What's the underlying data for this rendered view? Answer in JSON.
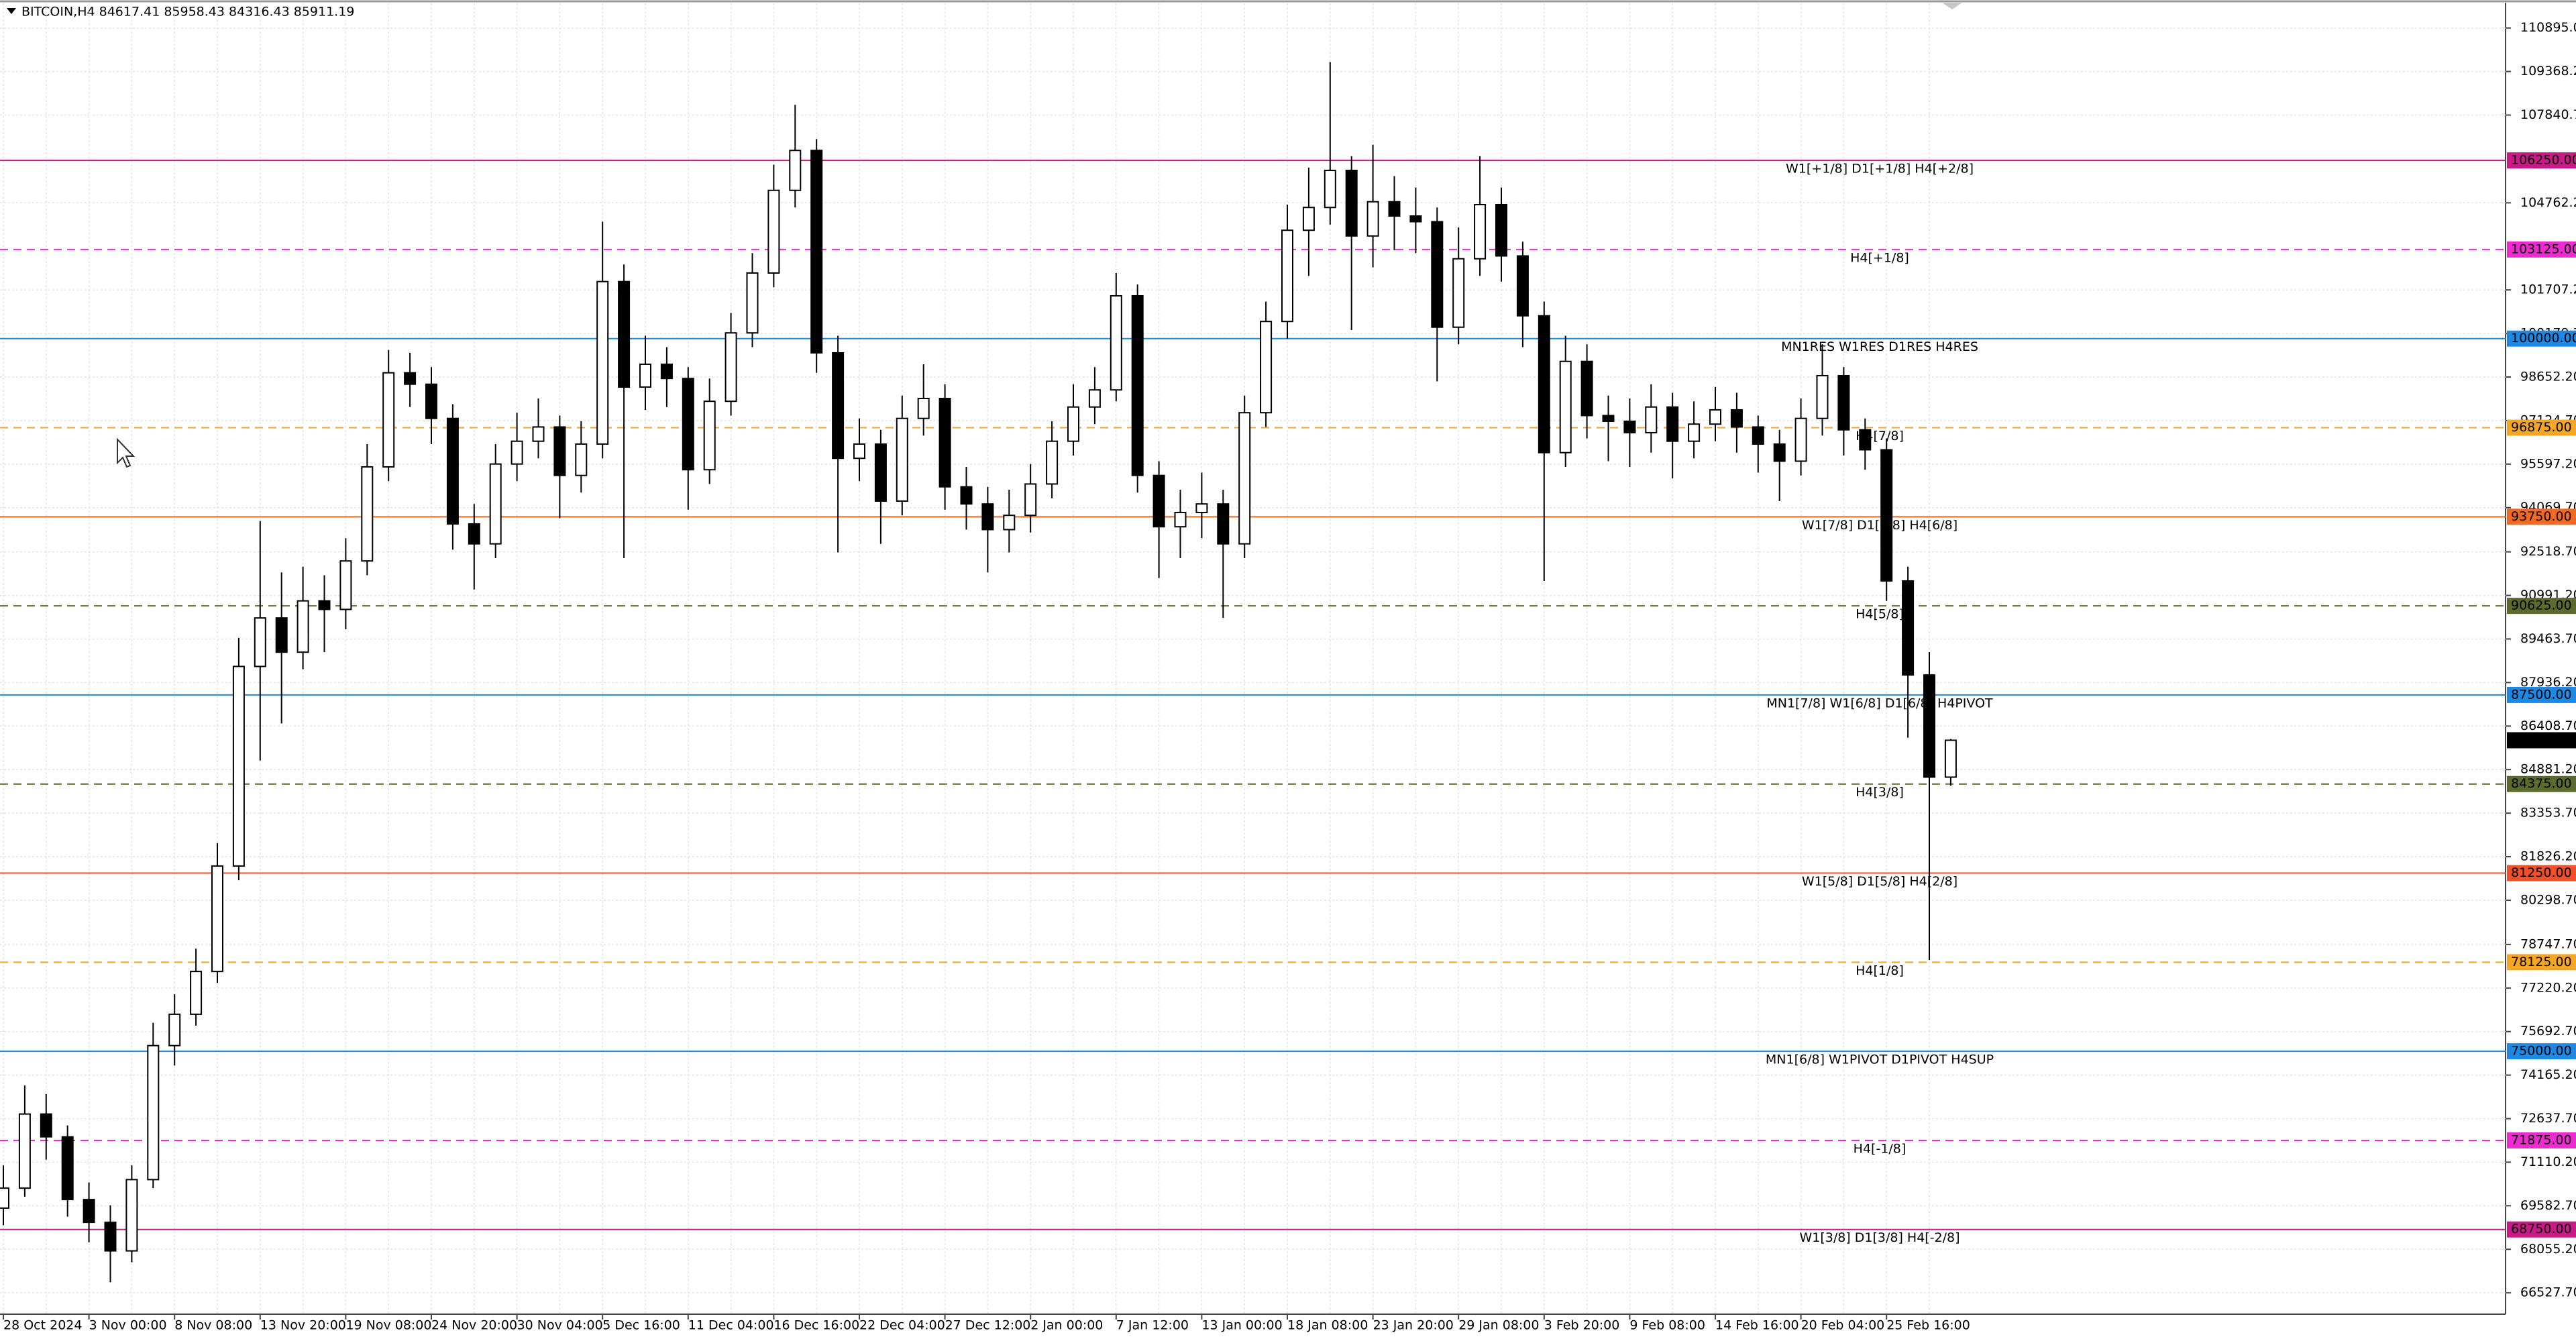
{
  "chart_data": {
    "type": "candlestick",
    "title": "BITCOIN,H4  84617.41 85958.43 84316.43 85911.19",
    "categories": [
      "28 Oct 2024",
      null,
      null,
      null,
      "3 Nov 00:00",
      null,
      null,
      null,
      "8 Nov 08:00",
      null,
      null,
      null,
      "13 Nov 20:00",
      null,
      null,
      null,
      "19 Nov 08:00",
      null,
      null,
      null,
      "24 Nov 20:00",
      null,
      null,
      null,
      "30 Nov 04:00",
      null,
      null,
      null,
      "5 Dec 16:00",
      null,
      null,
      null,
      "11 Dec 04:00",
      null,
      null,
      null,
      "16 Dec 16:00",
      null,
      null,
      null,
      "22 Dec 04:00",
      null,
      null,
      null,
      "27 Dec 12:00",
      null,
      null,
      null,
      "2 Jan 00:00",
      null,
      null,
      null,
      "7 Jan 12:00",
      null,
      null,
      null,
      "13 Jan 00:00",
      null,
      null,
      null,
      "18 Jan 08:00",
      null,
      null,
      null,
      "23 Jan 20:00",
      null,
      null,
      null,
      "29 Jan 08:00",
      null,
      null,
      null,
      "3 Feb 20:00",
      null,
      null,
      null,
      "9 Feb 08:00",
      null,
      null,
      null,
      "14 Feb 16:00",
      null,
      null,
      null,
      "20 Feb 04:00",
      null,
      null,
      null,
      "25 Feb 16:00",
      null,
      null,
      null
    ],
    "open": [
      69500,
      70200,
      72800,
      72000,
      69800,
      69000,
      68000,
      70500,
      75200,
      76300,
      77800,
      81500,
      88500,
      90200,
      89000,
      90800,
      90500,
      92200,
      95500,
      98800,
      98400,
      97200,
      93500,
      92800,
      95600,
      96400,
      96900,
      95200,
      96300,
      102000,
      98300,
      99100,
      98600,
      95400,
      97800,
      100200,
      102300,
      105200,
      106600,
      99500,
      95800,
      96300,
      94300,
      97200,
      97900,
      94800,
      94200,
      93300,
      93800,
      94900,
      96400,
      97600,
      98200,
      101500,
      95200,
      93400,
      93900,
      94200,
      92800,
      97400,
      100600,
      103800,
      104600,
      105900,
      103600,
      104800,
      104300,
      104100,
      100400,
      102800,
      104700,
      102900,
      100800,
      96000,
      99200,
      97300,
      97100,
      96700,
      97600,
      96400,
      97000,
      97500,
      96900,
      96300,
      95700,
      97200,
      98700,
      96800,
      96100,
      91500,
      88200,
      84617.41
    ],
    "high": [
      71000,
      73800,
      73500,
      72400,
      70400,
      69600,
      71000,
      76000,
      77000,
      78600,
      82300,
      89500,
      93600,
      91800,
      92000,
      91700,
      93000,
      96300,
      99600,
      99500,
      99000,
      97700,
      94200,
      96300,
      97400,
      97900,
      97300,
      97100,
      104100,
      102600,
      100100,
      99700,
      99000,
      98600,
      100900,
      103000,
      106100,
      108200,
      107000,
      100100,
      97200,
      96800,
      98000,
      99100,
      98400,
      95500,
      94800,
      94700,
      95600,
      97100,
      98400,
      99000,
      102300,
      101900,
      95700,
      94700,
      95300,
      94700,
      98000,
      101300,
      104700,
      106000,
      109700,
      106400,
      106800,
      105700,
      105300,
      104600,
      103900,
      106400,
      105300,
      103400,
      101300,
      100100,
      99800,
      98000,
      97900,
      98400,
      98100,
      97800,
      98300,
      98100,
      97300,
      96800,
      97900,
      99800,
      99000,
      97200,
      96500,
      92000,
      89000,
      85958.43
    ],
    "low": [
      68900,
      69900,
      71200,
      69200,
      68300,
      66900,
      67600,
      70200,
      74500,
      75900,
      77400,
      81000,
      85200,
      86500,
      88400,
      89000,
      89800,
      91700,
      95000,
      97600,
      96300,
      92600,
      91200,
      92300,
      95000,
      95800,
      93700,
      94600,
      95800,
      92300,
      97500,
      97600,
      94000,
      94900,
      97300,
      99700,
      101800,
      104600,
      98800,
      92500,
      95000,
      92800,
      93800,
      96600,
      94000,
      93300,
      91800,
      92500,
      93200,
      94400,
      95900,
      97000,
      97800,
      94600,
      91600,
      92300,
      93000,
      90200,
      92300,
      96900,
      100000,
      102200,
      104000,
      100300,
      102500,
      103100,
      103000,
      98500,
      99800,
      102200,
      102000,
      99700,
      91500,
      95500,
      96500,
      95700,
      95500,
      96000,
      95100,
      95800,
      96400,
      96000,
      95300,
      94300,
      95200,
      96600,
      95900,
      95400,
      90800,
      86000,
      78200,
      84316.43
    ],
    "close": [
      70200,
      72800,
      72000,
      69800,
      69000,
      68000,
      70500,
      75200,
      76300,
      77800,
      81500,
      88500,
      90200,
      89000,
      90800,
      90500,
      92200,
      95500,
      98800,
      98400,
      97200,
      93500,
      92800,
      95600,
      96400,
      96900,
      95200,
      96300,
      102000,
      98300,
      99100,
      98600,
      95400,
      97800,
      100200,
      102300,
      105200,
      106600,
      99500,
      95800,
      96300,
      94300,
      97200,
      97900,
      94800,
      94200,
      93300,
      93800,
      94900,
      96400,
      97600,
      98200,
      101500,
      95200,
      93400,
      93900,
      94200,
      92800,
      97400,
      100600,
      103800,
      104600,
      105900,
      103600,
      104800,
      104300,
      104100,
      100400,
      102800,
      104700,
      102900,
      100800,
      96000,
      99200,
      97300,
      97100,
      96700,
      97600,
      96400,
      97000,
      97500,
      96900,
      96300,
      95700,
      97200,
      98700,
      96800,
      96100,
      91500,
      88200,
      84617.41,
      85911.19
    ],
    "ylim": [
      65779,
      111759
    ],
    "yticks": [
      {
        "value": 110895,
        "label": "110895.00"
      },
      {
        "value": 109368.2,
        "label": "109368.20"
      },
      {
        "value": 107840.7,
        "label": "107840.70"
      },
      {
        "value": 104762.2,
        "label": "104762.20"
      },
      {
        "value": 101707.2,
        "label": "101707.20"
      },
      {
        "value": 100179.7,
        "label": "100179.70"
      },
      {
        "value": 98652.2,
        "label": "98652.20"
      },
      {
        "value": 97124.7,
        "label": "97124.70"
      },
      {
        "value": 95597.2,
        "label": "95597.20"
      },
      {
        "value": 94069.7,
        "label": "94069.70"
      },
      {
        "value": 92518.7,
        "label": "92518.70"
      },
      {
        "value": 90991.2,
        "label": "90991.20"
      },
      {
        "value": 89463.7,
        "label": "89463.70"
      },
      {
        "value": 87936.2,
        "label": "87936.20"
      },
      {
        "value": 86408.7,
        "label": "86408.70"
      },
      {
        "value": 84881.2,
        "label": "84881.20"
      },
      {
        "value": 83353.7,
        "label": "83353.70"
      },
      {
        "value": 81826.2,
        "label": "81826.20"
      },
      {
        "value": 80298.7,
        "label": "80298.70"
      },
      {
        "value": 78747.7,
        "label": "78747.70"
      },
      {
        "value": 77220.2,
        "label": "77220.20"
      },
      {
        "value": 75692.7,
        "label": "75692.70"
      },
      {
        "value": 74165.2,
        "label": "74165.20"
      },
      {
        "value": 72637.7,
        "label": "72637.70"
      },
      {
        "value": 71110.2,
        "label": "71110.20"
      },
      {
        "value": 69582.7,
        "label": "69582.70"
      },
      {
        "value": 68055.2,
        "label": "68055.20"
      },
      {
        "value": 66527.7,
        "label": "66527.70"
      }
    ],
    "grid": true,
    "levels": [
      {
        "name": "W1[+1/8] D1[+1/8] H4[+2/8]",
        "value": 106250,
        "value_label": "106250.00",
        "color": "#c81b86",
        "dashed": false
      },
      {
        "name": "H4[+1/8]",
        "value": 103125,
        "value_label": "103125.00",
        "color": "#ee2bd0",
        "dashed": true
      },
      {
        "name": "MN1RES W1RES D1RES H4RES",
        "value": 100000,
        "value_label": "100000.00",
        "color": "#1e88e5",
        "dashed": false
      },
      {
        "name": "H4[7/8]",
        "value": 96875,
        "value_label": "96875.00",
        "color": "#f5a623",
        "dashed": true
      },
      {
        "name": "W1[7/8] D1[7/8] H4[6/8]",
        "value": 93750,
        "value_label": "93750.00",
        "color": "#f26a22",
        "dashed": false
      },
      {
        "name": "H4[5/8]",
        "value": 90625,
        "value_label": "90625.00",
        "color": "#5b6b2e",
        "dashed": true
      },
      {
        "name": "MN1[7/8] W1[6/8] D1[6/8] H4PIVOT",
        "value": 87500,
        "value_label": "87500.00",
        "color": "#1e88e5",
        "dashed": false
      },
      {
        "name": "H4[3/8]",
        "value": 84375,
        "value_label": "84375.00",
        "color": "#5b6b2e",
        "dashed": true
      },
      {
        "name": "W1[5/8] D1[5/8] H4[2/8]",
        "value": 81250,
        "value_label": "81250.00",
        "color": "#f0502a",
        "dashed": false
      },
      {
        "name": "H4[1/8]",
        "value": 78125,
        "value_label": "78125.00",
        "color": "#f5a623",
        "dashed": true
      },
      {
        "name": "MN1[6/8] W1PIVOT D1PIVOT H4SUP",
        "value": 75000,
        "value_label": "75000.00",
        "color": "#1e88e5",
        "dashed": false
      },
      {
        "name": "H4[-1/8]",
        "value": 71875,
        "value_label": "71875.00",
        "color": "#ee2bd0",
        "dashed": true
      },
      {
        "name": "W1[3/8] D1[3/8] H4[-2/8]",
        "value": 68750,
        "value_label": "68750.00",
        "color": "#c81b86",
        "dashed": false
      }
    ],
    "last_price": 85911.19
  }
}
